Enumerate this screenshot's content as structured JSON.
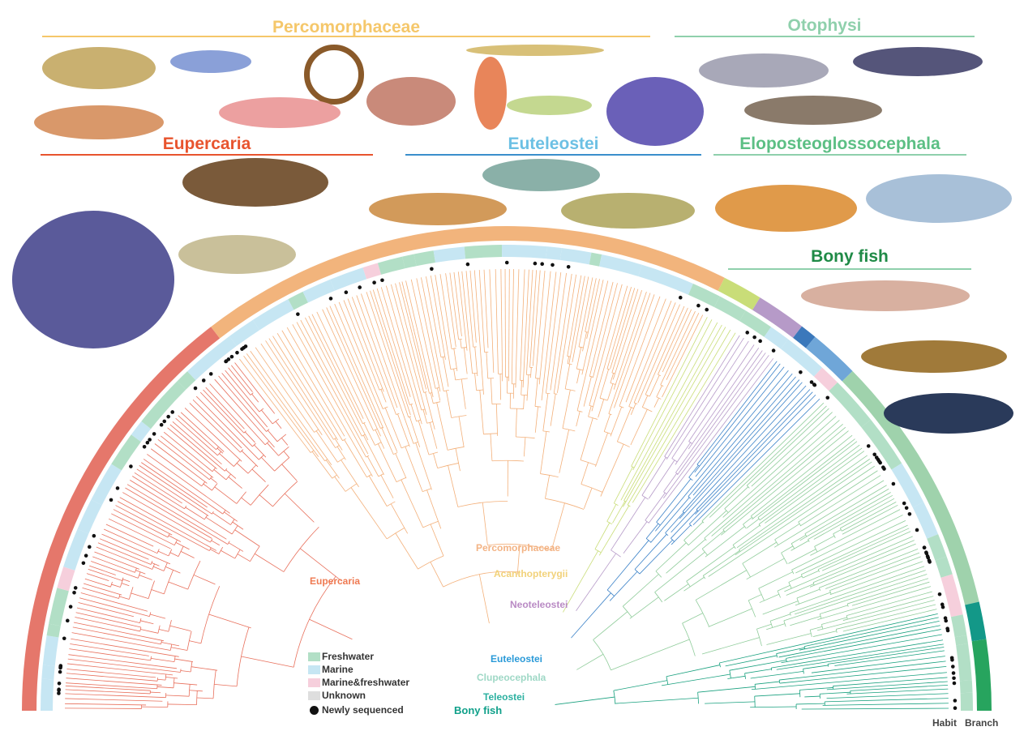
{
  "headers": [
    {
      "label": "Percomorphaceae",
      "color": "#f5c76a"
    },
    {
      "label": "Otophysi",
      "color": "#8fd0ac"
    },
    {
      "label": "Eupercaria",
      "color": "#e8542e"
    },
    {
      "label": "Euteleostei",
      "color": "#6cc0e4"
    },
    {
      "label": "Eloposteoglossocephala",
      "color": "#5cbf84"
    },
    {
      "label": "Bony fish",
      "color": "#1f8a46"
    }
  ],
  "clade_labels": [
    {
      "label": "Eupercaria",
      "color": "#ef7a52"
    },
    {
      "label": "Percomorphaceae",
      "color": "#f3b384"
    },
    {
      "label": "Acanthopterygii",
      "color": "#f2d27a"
    },
    {
      "label": "Neoteleostei",
      "color": "#b98ac4"
    },
    {
      "label": "Euteleostei",
      "color": "#2a9ad8"
    },
    {
      "label": "Clupeocephala",
      "color": "#9fd8c6"
    },
    {
      "label": "Teleostei",
      "color": "#2bb0a0"
    },
    {
      "label": "Bony fish",
      "color": "#10a08a"
    }
  ],
  "legend": [
    {
      "label": "Freshwater",
      "color": "#b2dfc6"
    },
    {
      "label": "Marine",
      "color": "#c6e6f3"
    },
    {
      "label": "Marine&freshwater",
      "color": "#f6cfdc"
    },
    {
      "label": "Unknown",
      "color": "#dedede"
    },
    {
      "label": "Newly sequenced",
      "color": "#111111",
      "icon": "filled-circle"
    }
  ],
  "ring_labels": {
    "habit": "Habit",
    "branch": "Branch"
  },
  "branch_ring_colors": {
    "Eupercaria": "#e5776b",
    "Percomorphaceae": "#f2b47c",
    "Acanthopterygii": "#c9dd78",
    "Neoteleostei": "#b69ac8",
    "Euteleostei_dark": "#3b78bb",
    "Euteleostei": "#6fa6d8",
    "Clupeocephala": "#9fd2ac",
    "Teleostei": "#139888",
    "Bony fish": "#27a45e"
  }
}
